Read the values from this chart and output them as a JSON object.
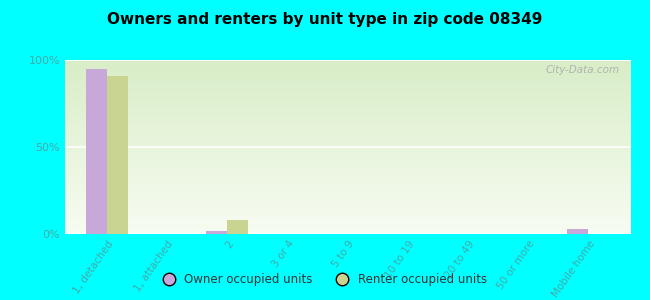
{
  "title": "Owners and renters by unit type in zip code 08349",
  "categories": [
    "1, detached",
    "1, attached",
    "2",
    "3 or 4",
    "5 to 9",
    "10 to 19",
    "20 to 49",
    "50 or more",
    "Mobile home"
  ],
  "owner_values": [
    95,
    0,
    2,
    0,
    0,
    0,
    0,
    0,
    3
  ],
  "renter_values": [
    91,
    0,
    8,
    0,
    0,
    0,
    0,
    0,
    0
  ],
  "owner_color": "#c8a8d8",
  "renter_color": "#c8d490",
  "background_color": "#00ffff",
  "plot_bg_color": "#eef5e0",
  "watermark": "City-Data.com",
  "ylim": [
    0,
    100
  ],
  "yticks": [
    0,
    50,
    100
  ],
  "ytick_labels": [
    "0%",
    "50%",
    "100%"
  ],
  "bar_width": 0.35,
  "legend_owner": "Owner occupied units",
  "legend_renter": "Renter occupied units",
  "tick_color": "#44aaaa",
  "grid_color": "#ffffff"
}
